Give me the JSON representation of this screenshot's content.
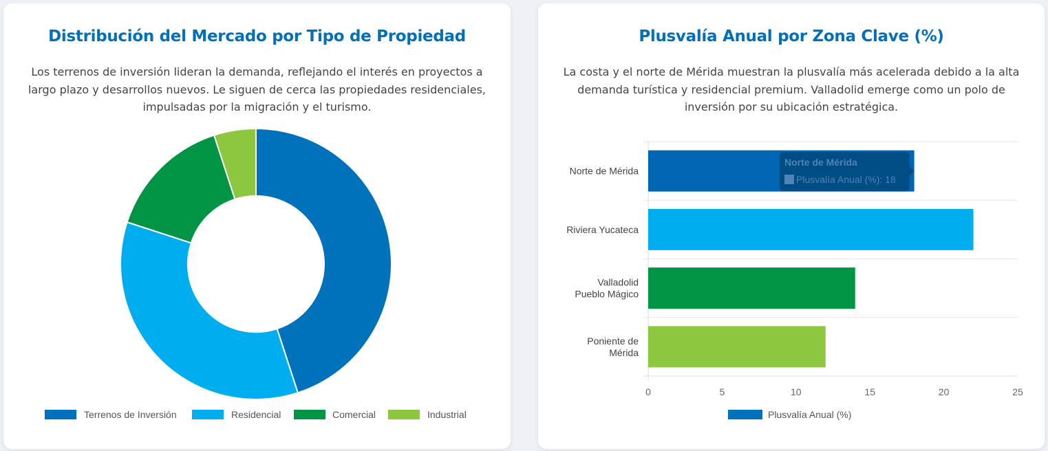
{
  "cards": {
    "left": {
      "title": "Distribución del Mercado por Tipo de Propiedad",
      "description": "Los terrenos de inversión lideran la demanda, reflejando el interés en proyectos a largo plazo y desarrollos nuevos. Le siguen de cerca las propiedades residenciales, impulsadas por la migración y el turismo."
    },
    "right": {
      "title": "Plusvalía Anual por Zona Clave (%)",
      "description": "La costa y el norte de Mérida muestran la plusvalía más acelerada debido a la alta demanda turística y residencial premium. Valladolid emerge como un polo de inversión por su ubicación estratégica."
    }
  },
  "chart_data": [
    {
      "type": "pie",
      "variant": "doughnut",
      "title": "Distribución del Mercado por Tipo de Propiedad",
      "categories": [
        "Terrenos de Inversión",
        "Residencial",
        "Comercial",
        "Industrial"
      ],
      "values": [
        45,
        35,
        15,
        5
      ],
      "colors": [
        "#0072bc",
        "#00aeef",
        "#009444",
        "#8dc63f"
      ],
      "legend": "bottom"
    },
    {
      "type": "bar",
      "orientation": "horizontal",
      "title": "Plusvalía Anual por Zona Clave (%)",
      "categories": [
        [
          "Norte de Mérida"
        ],
        [
          "Riviera Yucateca"
        ],
        [
          "Valladolid",
          "Pueblo Mágico"
        ],
        [
          "Poniente de",
          "Mérida"
        ]
      ],
      "series": [
        {
          "name": "Plusvalía Anual (%)",
          "values": [
            18,
            22,
            14,
            12
          ]
        }
      ],
      "colors": [
        "#0066b3",
        "#00aeef",
        "#009444",
        "#8dc63f"
      ],
      "legend_color": "#0072bc",
      "xlim": [
        0,
        25
      ],
      "xticks": [
        0,
        5,
        10,
        15,
        20,
        25
      ],
      "grid": true,
      "legend": "bottom",
      "tooltip": {
        "title": "Norte de Mérida",
        "label": "Plusvalía Anual (%): 18"
      }
    }
  ]
}
